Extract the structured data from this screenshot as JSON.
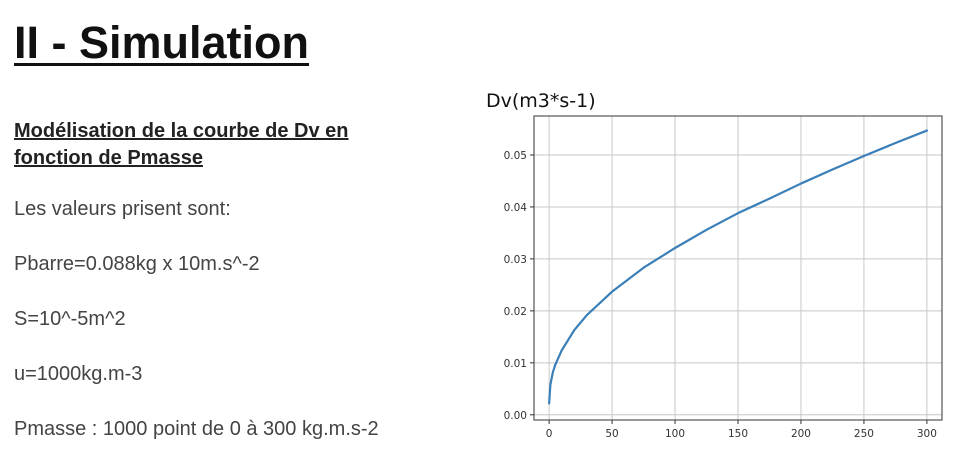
{
  "slide": {
    "title": "II - Simulation",
    "section_heading": "Modélisation de la courbe de Dv en fonction de Pmasse",
    "lines": [
      "Les valeurs prisent sont:",
      "Pbarre=0.088kg x 10m.s^-2",
      "S=10^-5m^2",
      "u=1000kg.m-3",
      "Pmasse : 1000 point  de 0 à 300 kg.m.s-2"
    ]
  },
  "chart_data": {
    "type": "line",
    "title": "Dv(m3*s-1)",
    "xlabel": "",
    "ylabel": "",
    "xlim": [
      -12,
      312
    ],
    "ylim": [
      -0.001,
      0.0575
    ],
    "x_ticks": [
      0,
      50,
      100,
      150,
      200,
      250,
      300
    ],
    "y_ticks": [
      0.0,
      0.01,
      0.02,
      0.03,
      0.04,
      0.05
    ],
    "x_tick_labels": [
      "0",
      "50",
      "100",
      "150",
      "200",
      "250",
      "300"
    ],
    "y_tick_labels": [
      "0.00",
      "0.01",
      "0.02",
      "0.03",
      "0.04",
      "0.05"
    ],
    "grid": true,
    "series": [
      {
        "color": "#3a7fb8",
        "x": [
          0,
          1,
          3,
          5,
          10,
          20,
          30,
          50,
          75,
          100,
          125,
          150,
          175,
          200,
          225,
          250,
          275,
          300
        ],
        "y": [
          0.0022,
          0.0058,
          0.0082,
          0.0097,
          0.0124,
          0.0163,
          0.0192,
          0.0237,
          0.0283,
          0.0321,
          0.0356,
          0.0388,
          0.0416,
          0.0445,
          0.0472,
          0.0498,
          0.0523,
          0.0547
        ]
      }
    ]
  }
}
